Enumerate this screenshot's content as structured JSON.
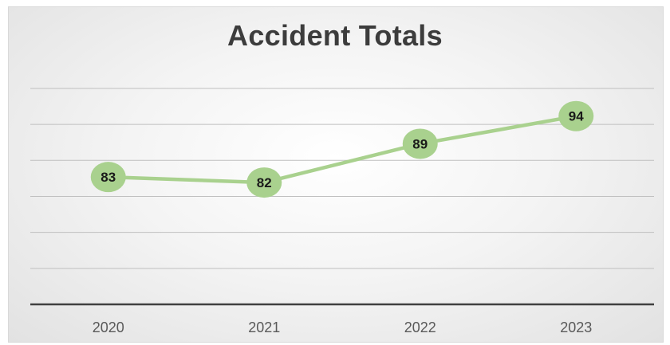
{
  "chart_data": {
    "type": "line",
    "title": "Accident Totals",
    "categories": [
      "2020",
      "2021",
      "2022",
      "2023"
    ],
    "series": [
      {
        "values": [
          83,
          82,
          89,
          94
        ]
      }
    ],
    "xlabel": "",
    "ylabel": "",
    "ylim": [
      60,
      100
    ],
    "yticks_shown": false,
    "grid": true,
    "legend": "none",
    "data_labels": "inside-markers",
    "colors": {
      "line": "#a9d18e",
      "marker": "#a9d18e",
      "label": "#1a1a1a",
      "grid": "#bfbfbf",
      "axis": "#404040",
      "tick_label": "#595959"
    }
  }
}
